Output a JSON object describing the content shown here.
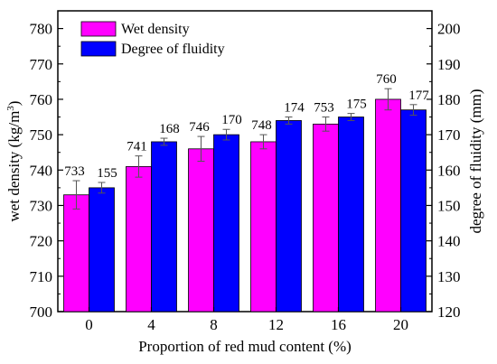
{
  "chart_data": {
    "type": "bar",
    "xlabel": "Proportion of red mud content (%)",
    "categories": [
      "0",
      "4",
      "8",
      "12",
      "16",
      "20"
    ],
    "ylabel_left": "wet density (kg/m³)",
    "ylabel_left_base": "wet density (kg/m",
    "ylabel_left_sup": "3",
    "ylabel_left_tail": ")",
    "ylabel_right": "degree of fluidity (mm)",
    "ylim_left": [
      700,
      785
    ],
    "ylim_right": [
      120,
      205
    ],
    "yticks_left": [
      "700",
      "710",
      "720",
      "730",
      "740",
      "750",
      "760",
      "770",
      "780"
    ],
    "yticks_right": [
      "120",
      "130",
      "140",
      "150",
      "160",
      "170",
      "180",
      "190",
      "200"
    ],
    "legend_position": "top-left",
    "series": [
      {
        "name": "Wet density",
        "axis": "left",
        "color": "#ff00ff",
        "values": [
          733,
          741,
          746,
          748,
          753,
          760
        ],
        "errors": [
          4,
          3,
          3.5,
          2,
          2,
          3
        ],
        "labels": [
          "733",
          "741",
          "746",
          "748",
          "753",
          "760"
        ]
      },
      {
        "name": "Degree of fluidity",
        "axis": "right",
        "color": "#0000ff",
        "values": [
          155,
          168,
          170,
          174,
          175,
          177
        ],
        "errors": [
          1.5,
          1,
          1.5,
          1,
          1,
          1.5
        ],
        "labels": [
          "155",
          "168",
          "170",
          "174",
          "175",
          "177"
        ]
      }
    ]
  }
}
